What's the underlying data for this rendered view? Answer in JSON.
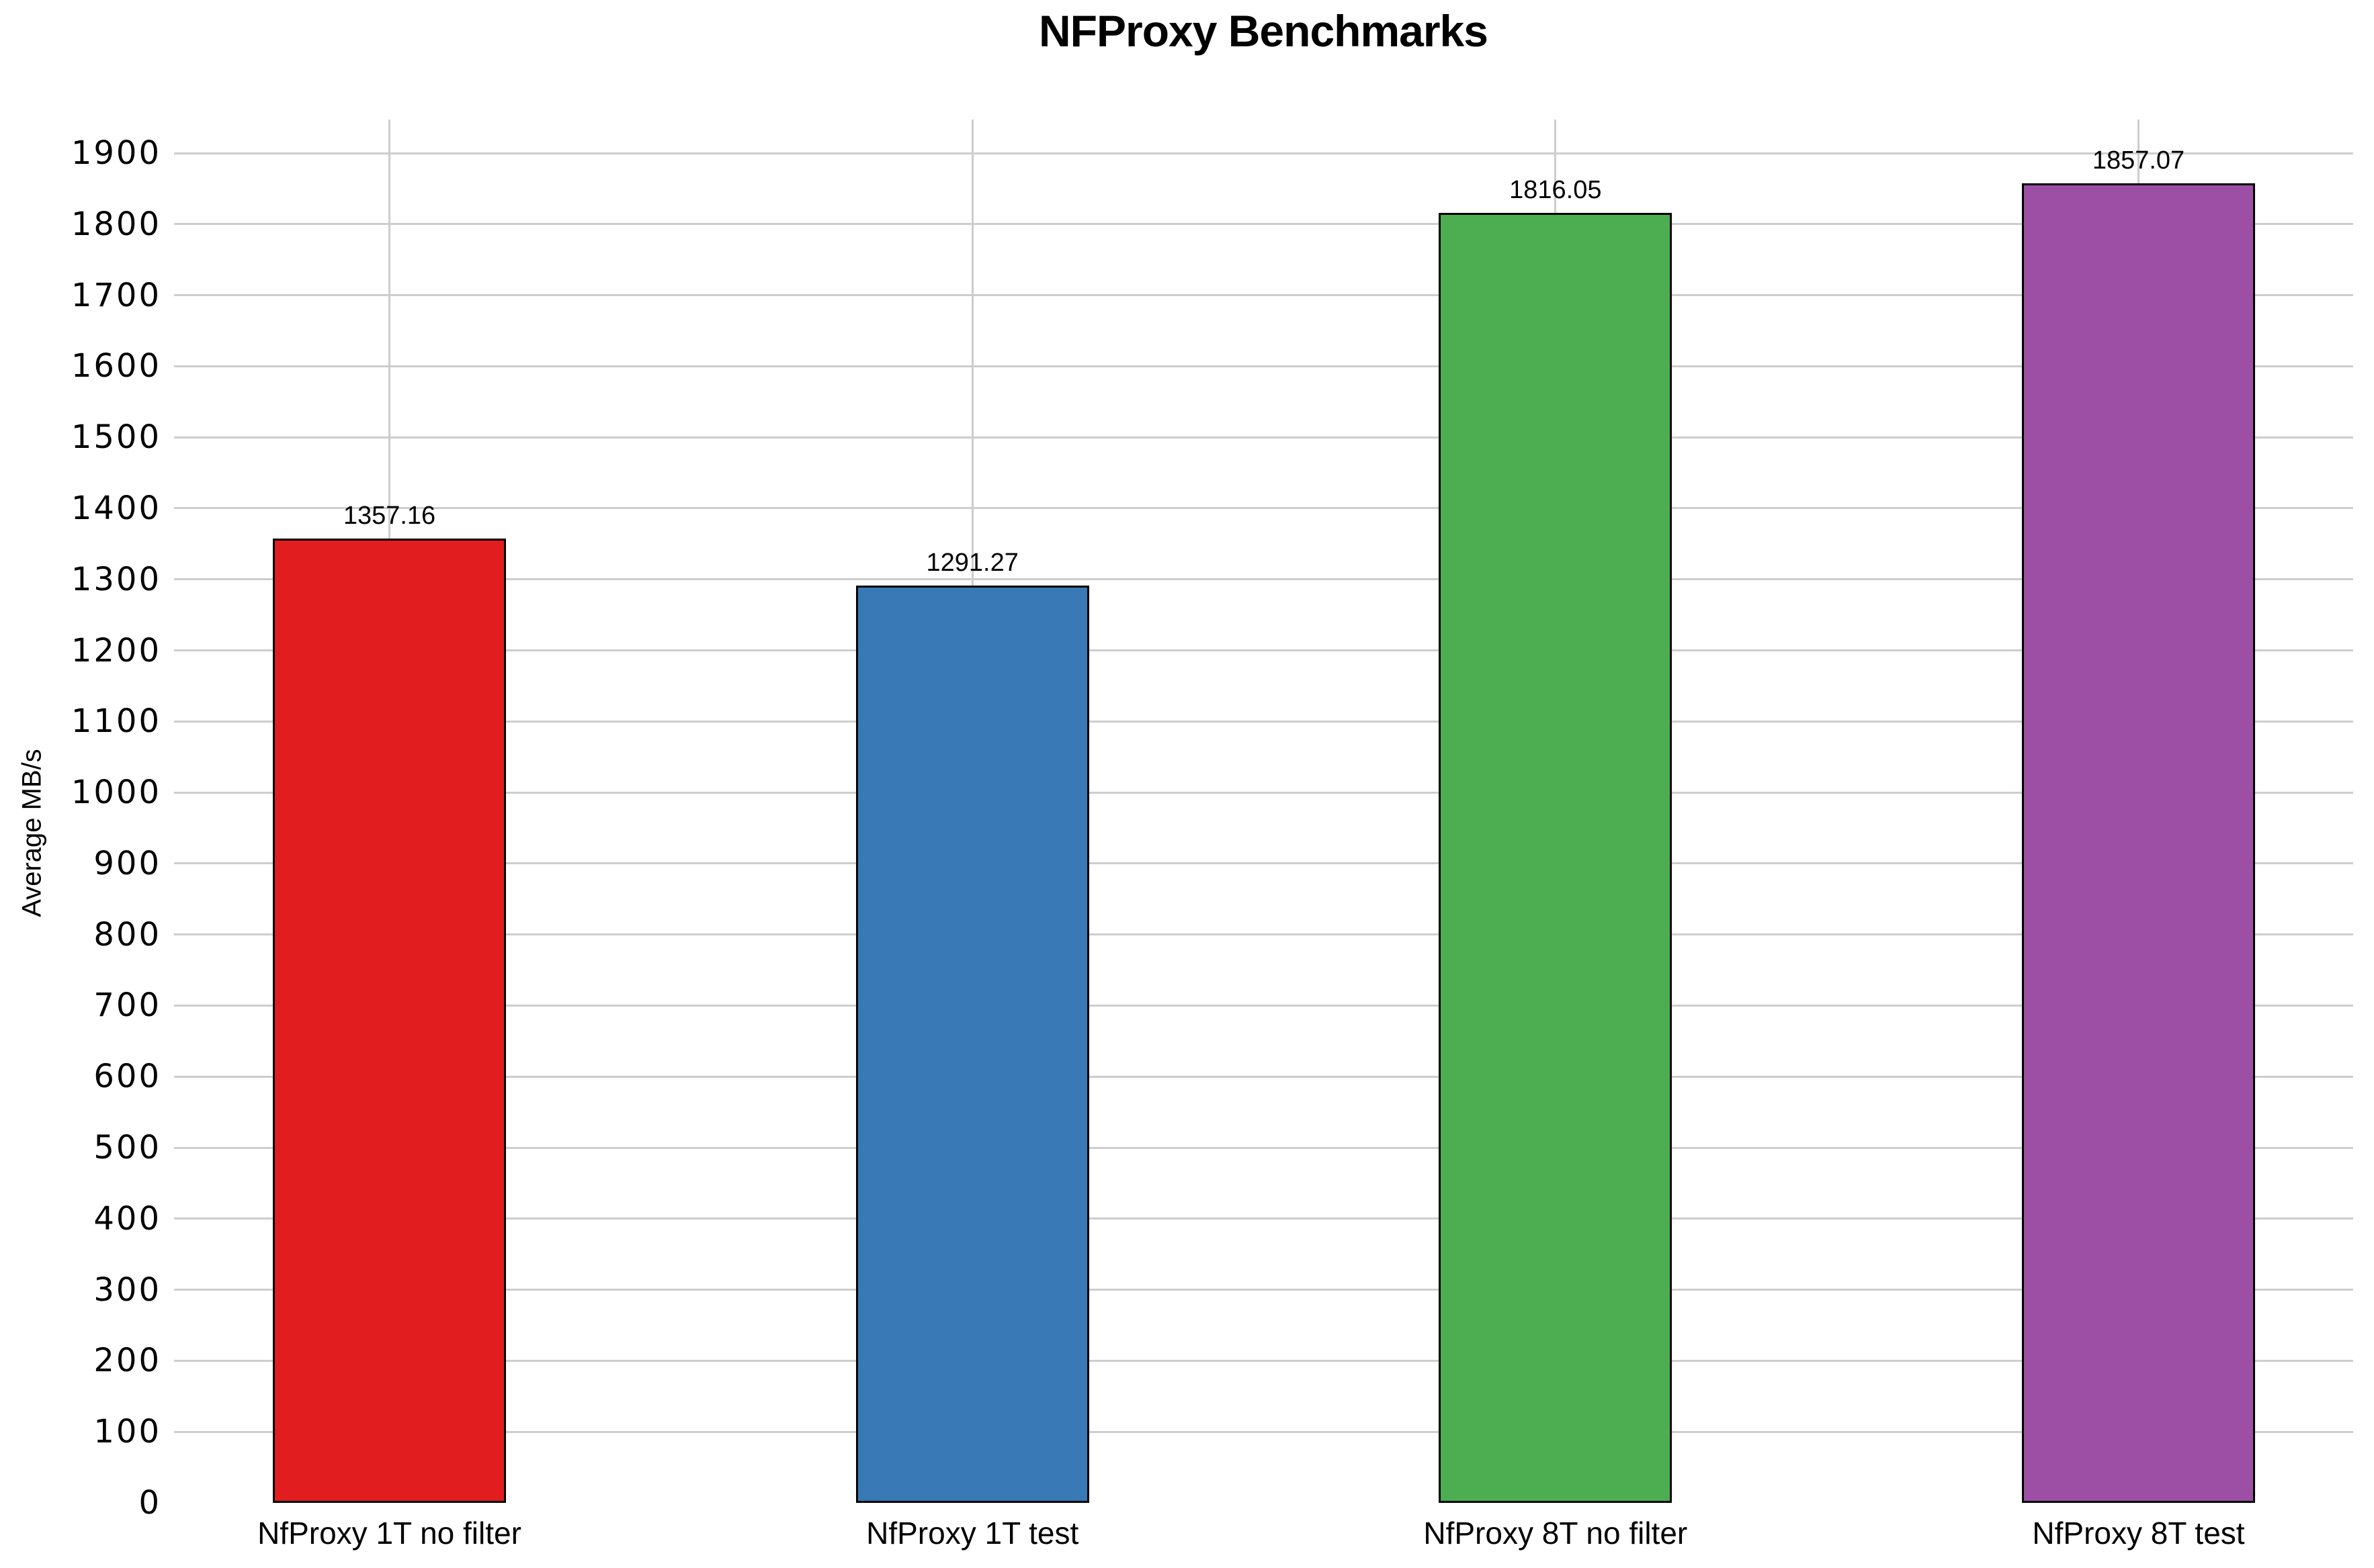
{
  "chart_data": {
    "type": "bar",
    "title": "NFProxy Benchmarks",
    "ylabel": "Average MB/s",
    "xlabel": "",
    "categories": [
      "NfProxy 1T no filter",
      "NfProxy 1T test",
      "NfProxy 8T no filter",
      "NfProxy 8T test"
    ],
    "values": [
      1357.16,
      1291.27,
      1816.05,
      1857.07
    ],
    "value_labels": [
      "1357.16",
      "1291.27",
      "1816.05",
      "1857.07"
    ],
    "bar_colors": [
      "#e21d1f",
      "#3879b6",
      "#4cae50",
      "#9c4fa5"
    ],
    "bar_border_color": "#000000",
    "grid_color": "#cdcdcd",
    "text_color": "#000000",
    "background_color": "#ffffff",
    "ylim": [
      0,
      1947
    ],
    "yticks": [
      0,
      100,
      200,
      300,
      400,
      500,
      600,
      700,
      800,
      900,
      1000,
      1100,
      1200,
      1300,
      1400,
      1500,
      1600,
      1700,
      1800,
      1900
    ],
    "grid": true,
    "legend": "none"
  }
}
